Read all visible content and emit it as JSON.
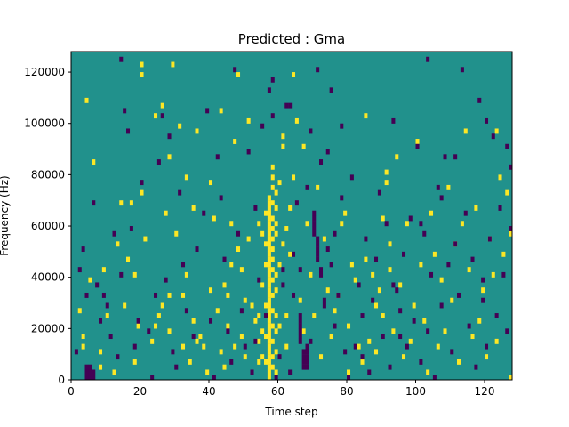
{
  "chart_data": {
    "type": "heatmap",
    "title": "Predicted : Gma",
    "xlabel": "Time step",
    "ylabel": "Frequency (Hz)",
    "xlim": [
      0,
      128
    ],
    "ylim": [
      0,
      128000
    ],
    "x_ticks": [
      0,
      20,
      40,
      60,
      80,
      100,
      120
    ],
    "y_ticks": [
      0,
      20000,
      40000,
      60000,
      80000,
      100000,
      120000
    ],
    "x_tick_labels": [
      "0",
      "20",
      "40",
      "60",
      "80",
      "100",
      "120"
    ],
    "y_tick_labels": [
      "0",
      "20000",
      "40000",
      "60000",
      "80000",
      "100000",
      "120000"
    ],
    "grid": false,
    "legend": "none",
    "colormap": "viridis",
    "values_range": [
      -1,
      1
    ],
    "colors": {
      "low": "#440154",
      "mid": "#21918c",
      "high": "#fde725"
    },
    "background_value": 0,
    "cells_high": [
      [
        57,
        1000
      ],
      [
        57,
        3000
      ],
      [
        57,
        5000
      ],
      [
        57,
        7000
      ],
      [
        57,
        9000
      ],
      [
        57,
        11000
      ],
      [
        57,
        13000
      ],
      [
        57,
        15000
      ],
      [
        57,
        17000
      ],
      [
        57,
        19000
      ],
      [
        57,
        21000
      ],
      [
        57,
        23000
      ],
      [
        57,
        25000
      ],
      [
        57,
        27000
      ],
      [
        57,
        29000
      ],
      [
        57,
        31000
      ],
      [
        57,
        33000
      ],
      [
        57,
        35000
      ],
      [
        57,
        37000
      ],
      [
        57,
        39000
      ],
      [
        57,
        41000
      ],
      [
        57,
        43000
      ],
      [
        57,
        45000
      ],
      [
        57,
        47000
      ],
      [
        57,
        49000
      ],
      [
        57,
        51000
      ],
      [
        57,
        53000
      ],
      [
        57,
        55000
      ],
      [
        57,
        57000
      ],
      [
        57,
        59000
      ],
      [
        57,
        61000
      ],
      [
        57,
        63000
      ],
      [
        57,
        65000
      ],
      [
        57,
        67000
      ],
      [
        57,
        69000
      ],
      [
        57,
        71000
      ],
      [
        58,
        5000
      ],
      [
        58,
        9000
      ],
      [
        58,
        15000
      ],
      [
        58,
        21000
      ],
      [
        58,
        27000
      ],
      [
        58,
        33000
      ],
      [
        58,
        39000
      ],
      [
        58,
        43000
      ],
      [
        58,
        47000
      ],
      [
        58,
        51000
      ],
      [
        58,
        55000
      ],
      [
        58,
        59000
      ],
      [
        58,
        63000
      ],
      [
        58,
        69000
      ],
      [
        58,
        75000
      ],
      [
        58,
        79000
      ],
      [
        58,
        83000
      ],
      [
        59,
        3000
      ],
      [
        59,
        11000
      ],
      [
        59,
        19000
      ],
      [
        59,
        25000
      ],
      [
        59,
        35000
      ],
      [
        59,
        41000
      ],
      [
        59,
        57000
      ],
      [
        59,
        61000
      ],
      [
        59,
        67000
      ],
      [
        59,
        73000
      ],
      [
        56,
        7000
      ],
      [
        56,
        17000
      ],
      [
        56,
        29000
      ],
      [
        56,
        45000
      ],
      [
        56,
        53000
      ],
      [
        56,
        65000
      ],
      [
        55,
        9000
      ],
      [
        55,
        19000
      ],
      [
        55,
        37000
      ],
      [
        55,
        57000
      ],
      [
        54,
        7000
      ],
      [
        54,
        25000
      ],
      [
        54,
        61000
      ],
      [
        60,
        21000
      ],
      [
        60,
        45000
      ],
      [
        60,
        77000
      ],
      [
        61,
        91000
      ],
      [
        61,
        95000
      ],
      [
        61,
        53000
      ],
      [
        63,
        49000
      ],
      [
        63,
        67000
      ],
      [
        3,
        13000
      ],
      [
        3,
        17000
      ],
      [
        5,
        39000
      ],
      [
        8,
        5000
      ],
      [
        8,
        11000
      ],
      [
        10,
        25000
      ],
      [
        12,
        3000
      ],
      [
        13,
        53000
      ],
      [
        15,
        29000
      ],
      [
        16,
        47000
      ],
      [
        17,
        69000
      ],
      [
        18,
        7000
      ],
      [
        18,
        41000
      ],
      [
        19,
        21000
      ],
      [
        20,
        73000
      ],
      [
        20,
        119000
      ],
      [
        20,
        123000
      ],
      [
        21,
        55000
      ],
      [
        23,
        15000
      ],
      [
        24,
        103000
      ],
      [
        25,
        25000
      ],
      [
        26,
        29000
      ],
      [
        26,
        107000
      ],
      [
        27,
        65000
      ],
      [
        28,
        87000
      ],
      [
        28,
        19000
      ],
      [
        29,
        123000
      ],
      [
        30,
        57000
      ],
      [
        31,
        99000
      ],
      [
        32,
        13000
      ],
      [
        32,
        33000
      ],
      [
        33,
        79000
      ],
      [
        33,
        41000
      ],
      [
        34,
        7000
      ],
      [
        35,
        67000
      ],
      [
        35,
        23000
      ],
      [
        36,
        15000
      ],
      [
        37,
        17000
      ],
      [
        39,
        3000
      ],
      [
        40,
        35000
      ],
      [
        40,
        77000
      ],
      [
        41,
        63000
      ],
      [
        42,
        27000
      ],
      [
        43,
        105000
      ],
      [
        43,
        11000
      ],
      [
        44,
        37000
      ],
      [
        45,
        33000
      ],
      [
        45,
        21000
      ],
      [
        46,
        61000
      ],
      [
        47,
        93000
      ],
      [
        47,
        13000
      ],
      [
        48,
        51000
      ],
      [
        48,
        119000
      ],
      [
        49,
        43000
      ],
      [
        49,
        17000
      ],
      [
        50,
        9000
      ],
      [
        50,
        31000
      ],
      [
        51,
        101000
      ],
      [
        51,
        55000
      ],
      [
        52,
        29000
      ],
      [
        53,
        23000
      ],
      [
        54,
        15000
      ],
      [
        62,
        59000
      ],
      [
        62,
        25000
      ],
      [
        62,
        13000
      ],
      [
        64,
        119000
      ],
      [
        64,
        79000
      ],
      [
        65,
        101000
      ],
      [
        66,
        31000
      ],
      [
        67,
        91000
      ],
      [
        67,
        19000
      ],
      [
        68,
        61000
      ],
      [
        69,
        41000
      ],
      [
        70,
        25000
      ],
      [
        71,
        75000
      ],
      [
        72,
        9000
      ],
      [
        73,
        55000
      ],
      [
        74,
        35000
      ],
      [
        75,
        17000
      ],
      [
        76,
        27000
      ],
      [
        77,
        33000
      ],
      [
        78,
        61000
      ],
      [
        79,
        65000
      ],
      [
        80,
        3000
      ],
      [
        80,
        21000
      ],
      [
        81,
        45000
      ],
      [
        82,
        39000
      ],
      [
        83,
        13000
      ],
      [
        84,
        7000
      ],
      [
        85,
        103000
      ],
      [
        85,
        47000
      ],
      [
        86,
        15000
      ],
      [
        87,
        41000
      ],
      [
        88,
        29000
      ],
      [
        88,
        11000
      ],
      [
        89,
        35000
      ],
      [
        90,
        25000
      ],
      [
        90,
        63000
      ],
      [
        91,
        81000
      ],
      [
        91,
        77000
      ],
      [
        92,
        53000
      ],
      [
        92,
        43000
      ],
      [
        93,
        19000
      ],
      [
        94,
        87000
      ],
      [
        95,
        37000
      ],
      [
        96,
        9000
      ],
      [
        97,
        61000
      ],
      [
        98,
        15000
      ],
      [
        99,
        29000
      ],
      [
        100,
        93000
      ],
      [
        101,
        45000
      ],
      [
        102,
        23000
      ],
      [
        103,
        3000
      ],
      [
        104,
        65000
      ],
      [
        105,
        49000
      ],
      [
        106,
        13000
      ],
      [
        107,
        39000
      ],
      [
        108,
        19000
      ],
      [
        109,
        75000
      ],
      [
        110,
        31000
      ],
      [
        111,
        53000
      ],
      [
        112,
        7000
      ],
      [
        113,
        61000
      ],
      [
        114,
        97000
      ],
      [
        115,
        43000
      ],
      [
        116,
        17000
      ],
      [
        117,
        67000
      ],
      [
        118,
        23000
      ],
      [
        119,
        35000
      ],
      [
        120,
        9000
      ],
      [
        121,
        55000
      ],
      [
        122,
        41000
      ],
      [
        123,
        97000
      ],
      [
        123,
        15000
      ],
      [
        124,
        79000
      ],
      [
        125,
        49000
      ],
      [
        126,
        73000
      ],
      [
        127,
        57000
      ],
      [
        127,
        1000
      ],
      [
        46,
        45000
      ],
      [
        44,
        5000
      ],
      [
        36,
        97000
      ],
      [
        38,
        13000
      ],
      [
        28,
        33000
      ],
      [
        24,
        21000
      ],
      [
        14,
        69000
      ],
      [
        9,
        43000
      ],
      [
        6,
        85000
      ],
      [
        4,
        109000
      ],
      [
        2,
        27000
      ]
    ],
    "cells_low": [
      [
        4,
        1000
      ],
      [
        4,
        3000
      ],
      [
        4,
        5000
      ],
      [
        5,
        1000
      ],
      [
        5,
        3000
      ],
      [
        5,
        5000
      ],
      [
        6,
        1000
      ],
      [
        6,
        3000
      ],
      [
        67,
        5000
      ],
      [
        67,
        7000
      ],
      [
        67,
        9000
      ],
      [
        67,
        11000
      ],
      [
        68,
        5000
      ],
      [
        68,
        7000
      ],
      [
        68,
        9000
      ],
      [
        68,
        11000
      ],
      [
        68,
        13000
      ],
      [
        66,
        15000
      ],
      [
        66,
        17000
      ],
      [
        66,
        19000
      ],
      [
        66,
        21000
      ],
      [
        66,
        23000
      ],
      [
        66,
        25000
      ],
      [
        70,
        57000
      ],
      [
        70,
        59000
      ],
      [
        70,
        61000
      ],
      [
        70,
        63000
      ],
      [
        70,
        65000
      ],
      [
        71,
        47000
      ],
      [
        71,
        49000
      ],
      [
        71,
        51000
      ],
      [
        71,
        53000
      ],
      [
        71,
        55000
      ],
      [
        72,
        43000
      ],
      [
        72,
        41000
      ],
      [
        62,
        107000
      ],
      [
        63,
        107000
      ],
      [
        73,
        29000
      ],
      [
        73,
        31000
      ],
      [
        1,
        11000
      ],
      [
        2,
        43000
      ],
      [
        3,
        51000
      ],
      [
        4,
        33000
      ],
      [
        6,
        69000
      ],
      [
        7,
        37000
      ],
      [
        8,
        23000
      ],
      [
        9,
        33000
      ],
      [
        10,
        29000
      ],
      [
        11,
        17000
      ],
      [
        12,
        57000
      ],
      [
        13,
        9000
      ],
      [
        14,
        125000
      ],
      [
        14,
        41000
      ],
      [
        15,
        105000
      ],
      [
        16,
        97000
      ],
      [
        17,
        59000
      ],
      [
        18,
        13000
      ],
      [
        19,
        23000
      ],
      [
        20,
        77000
      ],
      [
        22,
        19000
      ],
      [
        23,
        1000
      ],
      [
        24,
        33000
      ],
      [
        25,
        85000
      ],
      [
        26,
        103000
      ],
      [
        27,
        39000
      ],
      [
        28,
        95000
      ],
      [
        29,
        11000
      ],
      [
        30,
        5000
      ],
      [
        31,
        73000
      ],
      [
        32,
        45000
      ],
      [
        33,
        27000
      ],
      [
        35,
        17000
      ],
      [
        36,
        51000
      ],
      [
        38,
        65000
      ],
      [
        39,
        105000
      ],
      [
        40,
        23000
      ],
      [
        41,
        1000
      ],
      [
        42,
        87000
      ],
      [
        43,
        71000
      ],
      [
        44,
        47000
      ],
      [
        45,
        19000
      ],
      [
        46,
        7000
      ],
      [
        47,
        121000
      ],
      [
        48,
        57000
      ],
      [
        49,
        27000
      ],
      [
        50,
        13000
      ],
      [
        51,
        89000
      ],
      [
        52,
        3000
      ],
      [
        53,
        67000
      ],
      [
        54,
        39000
      ],
      [
        55,
        99000
      ],
      [
        56,
        25000
      ],
      [
        57,
        113000
      ],
      [
        58,
        117000
      ],
      [
        59,
        1000
      ],
      [
        60,
        9000
      ],
      [
        61,
        37000
      ],
      [
        63,
        3000
      ],
      [
        64,
        49000
      ],
      [
        65,
        69000
      ],
      [
        66,
        43000
      ],
      [
        68,
        75000
      ],
      [
        69,
        97000
      ],
      [
        71,
        121000
      ],
      [
        72,
        85000
      ],
      [
        74,
        89000
      ],
      [
        75,
        45000
      ],
      [
        76,
        21000
      ],
      [
        77,
        33000
      ],
      [
        78,
        99000
      ],
      [
        79,
        11000
      ],
      [
        80,
        1000
      ],
      [
        81,
        79000
      ],
      [
        82,
        13000
      ],
      [
        83,
        37000
      ],
      [
        84,
        9000
      ],
      [
        85,
        55000
      ],
      [
        86,
        3000
      ],
      [
        87,
        31000
      ],
      [
        88,
        47000
      ],
      [
        89,
        73000
      ],
      [
        90,
        17000
      ],
      [
        91,
        61000
      ],
      [
        92,
        5000
      ],
      [
        93,
        101000
      ],
      [
        94,
        35000
      ],
      [
        95,
        27000
      ],
      [
        96,
        49000
      ],
      [
        97,
        13000
      ],
      [
        98,
        63000
      ],
      [
        99,
        23000
      ],
      [
        100,
        91000
      ],
      [
        101,
        7000
      ],
      [
        102,
        57000
      ],
      [
        103,
        19000
      ],
      [
        104,
        41000
      ],
      [
        105,
        1000
      ],
      [
        106,
        75000
      ],
      [
        107,
        29000
      ],
      [
        108,
        87000
      ],
      [
        109,
        45000
      ],
      [
        110,
        11000
      ],
      [
        111,
        53000
      ],
      [
        112,
        33000
      ],
      [
        113,
        121000
      ],
      [
        114,
        65000
      ],
      [
        115,
        21000
      ],
      [
        116,
        47000
      ],
      [
        117,
        5000
      ],
      [
        118,
        109000
      ],
      [
        119,
        39000
      ],
      [
        120,
        13000
      ],
      [
        121,
        55000
      ],
      [
        122,
        95000
      ],
      [
        123,
        25000
      ],
      [
        124,
        67000
      ],
      [
        125,
        41000
      ],
      [
        126,
        19000
      ],
      [
        127,
        83000
      ],
      [
        127,
        59000
      ],
      [
        126,
        91000
      ],
      [
        120,
        101000
      ],
      [
        119,
        31000
      ],
      [
        111,
        87000
      ],
      [
        107,
        71000
      ],
      [
        103,
        125000
      ],
      [
        101,
        61000
      ],
      [
        95,
        17000
      ],
      [
        93,
        37000
      ],
      [
        84,
        25000
      ],
      [
        78,
        71000
      ],
      [
        76,
        57000
      ],
      [
        75,
        113000
      ],
      [
        74,
        51000
      ],
      [
        69,
        15000
      ],
      [
        64,
        33000
      ],
      [
        61,
        43000
      ],
      [
        58,
        103000
      ],
      [
        53,
        15000
      ]
    ]
  }
}
